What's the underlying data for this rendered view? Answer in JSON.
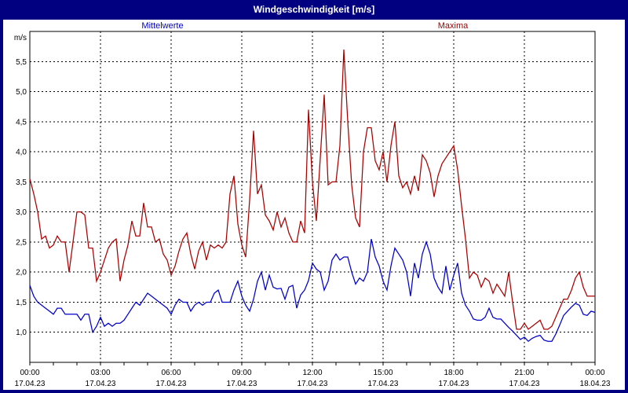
{
  "window": {
    "title": "Windgeschwindigkeit [m/s]"
  },
  "legend": [
    {
      "label": "Mittelwerte",
      "color": "#0000cc"
    },
    {
      "label": "Maxima",
      "color": "#990000"
    }
  ],
  "chart_data": {
    "type": "line",
    "title": "Windgeschwindigkeit [m/s]",
    "ylabel": "m/s",
    "ylim": [
      0.5,
      6.0
    ],
    "xlim_hours": [
      0,
      24
    ],
    "grid": "dashed",
    "legend_position": "top",
    "x_step_minutes": 10,
    "yticks": [
      {
        "v": 1.0,
        "label": "1,0"
      },
      {
        "v": 1.5,
        "label": "1,5"
      },
      {
        "v": 2.0,
        "label": "2,0"
      },
      {
        "v": 2.5,
        "label": "2,5"
      },
      {
        "v": 3.0,
        "label": "3,0"
      },
      {
        "v": 3.5,
        "label": "3,5"
      },
      {
        "v": 4.0,
        "label": "4,0"
      },
      {
        "v": 4.5,
        "label": "4,5"
      },
      {
        "v": 5.0,
        "label": "5,0"
      },
      {
        "v": 5.5,
        "label": "5,5"
      }
    ],
    "x_major_ticks": [
      {
        "hour": 0,
        "time": "00:00",
        "date": "17.04.23"
      },
      {
        "hour": 3,
        "time": "03:00",
        "date": "17.04.23"
      },
      {
        "hour": 6,
        "time": "06:00",
        "date": "17.04.23"
      },
      {
        "hour": 9,
        "time": "09:00",
        "date": "17.04.23"
      },
      {
        "hour": 12,
        "time": "12:00",
        "date": "17.04.23"
      },
      {
        "hour": 15,
        "time": "15:00",
        "date": "17.04.23"
      },
      {
        "hour": 18,
        "time": "18:00",
        "date": "17.04.23"
      },
      {
        "hour": 21,
        "time": "21:00",
        "date": "17.04.23"
      },
      {
        "hour": 24,
        "time": "00:00",
        "date": "18.04.23"
      }
    ],
    "x_minor_tick_hours": 1,
    "series": [
      {
        "name": "Mittelwerte",
        "color": "#0000cc",
        "values": [
          1.78,
          1.6,
          1.5,
          1.45,
          1.4,
          1.35,
          1.3,
          1.4,
          1.4,
          1.3,
          1.3,
          1.3,
          1.3,
          1.2,
          1.3,
          1.3,
          1.0,
          1.1,
          1.25,
          1.1,
          1.15,
          1.1,
          1.15,
          1.15,
          1.2,
          1.3,
          1.4,
          1.5,
          1.45,
          1.55,
          1.65,
          1.6,
          1.55,
          1.5,
          1.45,
          1.4,
          1.3,
          1.45,
          1.55,
          1.5,
          1.5,
          1.35,
          1.45,
          1.5,
          1.45,
          1.5,
          1.5,
          1.65,
          1.7,
          1.5,
          1.5,
          1.5,
          1.7,
          1.85,
          1.6,
          1.45,
          1.35,
          1.55,
          1.85,
          2.0,
          1.7,
          1.95,
          1.75,
          1.72,
          1.73,
          1.55,
          1.75,
          1.78,
          1.4,
          1.62,
          1.7,
          1.86,
          2.15,
          2.05,
          2.0,
          1.7,
          1.85,
          2.2,
          2.3,
          2.2,
          2.25,
          2.25,
          2.0,
          1.8,
          1.9,
          1.85,
          2.0,
          2.55,
          2.25,
          2.1,
          1.85,
          1.7,
          2.1,
          2.4,
          2.3,
          2.2,
          2.0,
          1.6,
          2.15,
          1.9,
          2.3,
          2.5,
          2.3,
          1.9,
          1.75,
          1.65,
          2.1,
          1.7,
          1.95,
          2.15,
          1.65,
          1.45,
          1.35,
          1.22,
          1.2,
          1.2,
          1.25,
          1.4,
          1.25,
          1.22,
          1.22,
          1.15,
          1.08,
          1.02,
          0.95,
          0.88,
          0.92,
          0.85,
          0.9,
          0.93,
          0.95,
          0.87,
          0.85,
          0.85,
          0.97,
          1.12,
          1.28,
          1.35,
          1.42,
          1.48,
          1.45,
          1.3,
          1.28,
          1.35,
          1.33
        ]
      },
      {
        "name": "Maxima",
        "color": "#aa0000",
        "values": [
          3.55,
          3.3,
          3.0,
          2.55,
          2.6,
          2.4,
          2.45,
          2.6,
          2.5,
          2.5,
          2.0,
          2.5,
          3.0,
          3.0,
          2.95,
          2.4,
          2.4,
          1.85,
          2.0,
          2.2,
          2.4,
          2.5,
          2.55,
          1.85,
          2.2,
          2.45,
          2.85,
          2.6,
          2.6,
          3.15,
          2.75,
          2.75,
          2.5,
          2.55,
          2.3,
          2.2,
          1.95,
          2.1,
          2.35,
          2.55,
          2.65,
          2.3,
          2.05,
          2.35,
          2.5,
          2.2,
          2.45,
          2.4,
          2.45,
          2.4,
          2.5,
          3.3,
          3.6,
          2.8,
          2.45,
          2.25,
          3.2,
          4.35,
          3.3,
          3.45,
          2.95,
          2.85,
          2.7,
          3.0,
          2.75,
          2.9,
          2.65,
          2.5,
          2.5,
          2.85,
          2.65,
          4.7,
          3.5,
          2.85,
          3.9,
          4.95,
          3.45,
          3.5,
          3.5,
          4.1,
          5.7,
          4.5,
          3.45,
          2.9,
          2.75,
          4.0,
          4.4,
          4.4,
          3.85,
          3.7,
          4.0,
          3.5,
          4.1,
          4.5,
          3.6,
          3.4,
          3.5,
          3.3,
          3.6,
          3.35,
          3.95,
          3.85,
          3.65,
          3.25,
          3.6,
          3.8,
          3.9,
          4.0,
          4.1,
          3.7,
          3.1,
          2.55,
          1.9,
          2.0,
          1.95,
          1.75,
          1.9,
          1.85,
          1.65,
          1.8,
          1.7,
          1.6,
          2.0,
          1.5,
          1.05,
          1.05,
          1.15,
          1.05,
          1.1,
          1.15,
          1.2,
          1.05,
          1.05,
          1.1,
          1.25,
          1.4,
          1.55,
          1.55,
          1.7,
          1.9,
          2.0,
          1.75,
          1.6,
          1.6,
          1.6
        ]
      }
    ]
  }
}
